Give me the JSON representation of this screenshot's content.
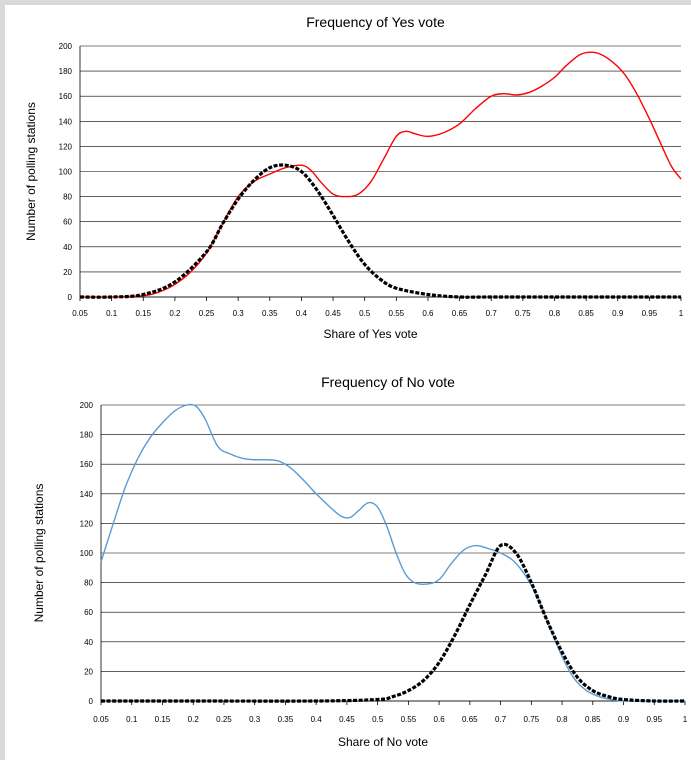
{
  "chart_data": [
    {
      "type": "line",
      "title": "Frequency of Yes vote",
      "xlabel": "Share of Yes vote",
      "ylabel": "Number of polling stations",
      "xlim": [
        0.05,
        1
      ],
      "ylim": [
        0,
        200
      ],
      "y_ticks": [
        "0",
        "20",
        "40",
        "60",
        "80",
        "100",
        "120",
        "140",
        "160",
        "180",
        "200"
      ],
      "x_ticks": [
        "0.05",
        "0.1",
        "0.15",
        "0.2",
        "0.25",
        "0.3",
        "0.35",
        "0.4",
        "0.45",
        "0.5",
        "0.55",
        "0.6",
        "0.65",
        "0.7",
        "0.75",
        "0.8",
        "0.85",
        "0.9",
        "0.95",
        "1"
      ],
      "grid": true,
      "series": [
        {
          "color": "#ff0000",
          "style": "solid",
          "x": [
            0.05,
            0.1,
            0.15,
            0.175,
            0.2,
            0.225,
            0.25,
            0.275,
            0.3,
            0.325,
            0.35,
            0.375,
            0.4,
            0.415,
            0.43,
            0.45,
            0.47,
            0.49,
            0.51,
            0.53,
            0.55,
            0.565,
            0.58,
            0.6,
            0.625,
            0.65,
            0.675,
            0.7,
            0.72,
            0.74,
            0.76,
            0.78,
            0.8,
            0.82,
            0.84,
            0.855,
            0.87,
            0.89,
            0.91,
            0.93,
            0.95,
            0.97,
            0.985,
            1.0
          ],
          "y": [
            0,
            0,
            1,
            4,
            10,
            20,
            35,
            58,
            80,
            92,
            98,
            103,
            105,
            101,
            92,
            82,
            80,
            82,
            92,
            110,
            128,
            132,
            130,
            128,
            131,
            138,
            150,
            160,
            162,
            161,
            163,
            168,
            175,
            185,
            193,
            195,
            194,
            188,
            178,
            162,
            142,
            120,
            104,
            94
          ]
        },
        {
          "color": "#000000",
          "style": "dashed",
          "x": [
            0.05,
            0.1,
            0.15,
            0.2,
            0.25,
            0.275,
            0.3,
            0.325,
            0.35,
            0.375,
            0.4,
            0.425,
            0.45,
            0.475,
            0.5,
            0.525,
            0.55,
            0.6,
            0.65,
            0.7,
            0.8,
            0.9,
            1.0
          ],
          "y": [
            0,
            0,
            2,
            12,
            36,
            58,
            78,
            93,
            103,
            105,
            100,
            85,
            65,
            44,
            26,
            14,
            7,
            2,
            0,
            0,
            0,
            0,
            0
          ]
        }
      ]
    },
    {
      "type": "line",
      "title": "Frequency of No vote",
      "xlabel": "Share of No vote",
      "ylabel": "Number of polling stations",
      "xlim": [
        0.05,
        1
      ],
      "ylim": [
        0,
        200
      ],
      "y_ticks": [
        "0",
        "20",
        "40",
        "60",
        "80",
        "100",
        "120",
        "140",
        "160",
        "180",
        "200"
      ],
      "x_ticks": [
        "0.05",
        "0.1",
        "0.15",
        "0.2",
        "0.25",
        "0.3",
        "0.35",
        "0.4",
        "0.45",
        "0.5",
        "0.55",
        "0.6",
        "0.65",
        "0.7",
        "0.75",
        "0.8",
        "0.85",
        "0.9",
        "0.95",
        "1"
      ],
      "grid": true,
      "series": [
        {
          "color": "#5b9bd5",
          "style": "solid",
          "x": [
            0.05,
            0.07,
            0.09,
            0.11,
            0.13,
            0.15,
            0.17,
            0.19,
            0.205,
            0.22,
            0.24,
            0.26,
            0.28,
            0.3,
            0.32,
            0.34,
            0.36,
            0.38,
            0.4,
            0.42,
            0.44,
            0.455,
            0.47,
            0.485,
            0.5,
            0.515,
            0.53,
            0.545,
            0.56,
            0.58,
            0.6,
            0.62,
            0.64,
            0.66,
            0.68,
            0.7,
            0.72,
            0.74,
            0.76,
            0.78,
            0.8,
            0.82,
            0.84,
            0.86,
            0.88,
            0.9,
            0.95,
            1.0
          ],
          "y": [
            94,
            120,
            145,
            164,
            178,
            188,
            196,
            200,
            199,
            190,
            172,
            167,
            164,
            163,
            163,
            162,
            157,
            149,
            140,
            132,
            125,
            124,
            129,
            134,
            131,
            118,
            100,
            86,
            80,
            79,
            82,
            93,
            102,
            105,
            103,
            100,
            95,
            85,
            70,
            50,
            30,
            15,
            7,
            3,
            1,
            0,
            0,
            0
          ]
        },
        {
          "color": "#000000",
          "style": "dashed",
          "x": [
            0.05,
            0.2,
            0.4,
            0.5,
            0.525,
            0.55,
            0.575,
            0.6,
            0.625,
            0.65,
            0.675,
            0.7,
            0.725,
            0.75,
            0.775,
            0.8,
            0.825,
            0.85,
            0.875,
            0.9,
            0.95,
            1.0
          ],
          "y": [
            0,
            0,
            0,
            1,
            3,
            7,
            14,
            26,
            44,
            65,
            85,
            105,
            100,
            80,
            55,
            33,
            16,
            7,
            3,
            1,
            0,
            0
          ]
        }
      ]
    }
  ]
}
